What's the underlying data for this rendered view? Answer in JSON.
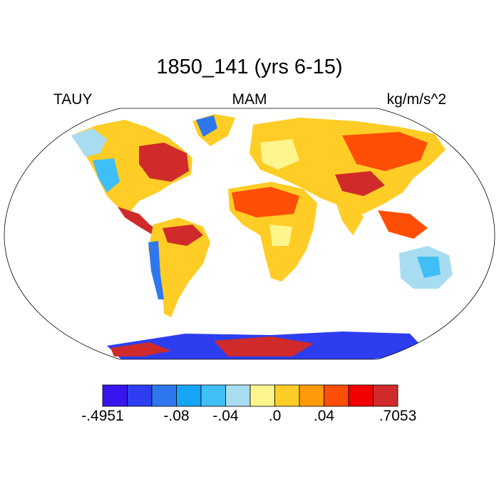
{
  "title": "1850_141 (yrs 6-15)",
  "left_label": "TAUY",
  "center_label": "MAM",
  "right_label": "kg/m/s^2",
  "projection": "Robinson",
  "colorbar": {
    "colors": [
      "#3a14f0",
      "#2d3ef0",
      "#2f77ee",
      "#16a4f6",
      "#3fbff5",
      "#a8dcf1",
      "#fef58d",
      "#ffcd25",
      "#ff9a0a",
      "#ff4e06",
      "#f00000",
      "#d02a2a"
    ],
    "tick_labels": [
      "-.4951",
      "-.08",
      "-.04",
      ".0",
      ".04",
      ".7053"
    ],
    "tick_boundaries": [
      0,
      3,
      5,
      7,
      9,
      12
    ]
  }
}
